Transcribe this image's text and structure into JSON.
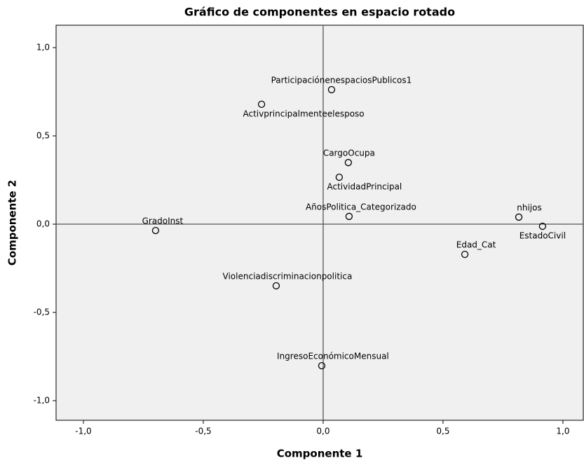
{
  "chart_data": {
    "type": "scatter",
    "title": "Gráfico de componentes en espacio rotado",
    "x_label": "Componente 1",
    "y_label": "Componente 2",
    "xlim": [
      -1.114,
      1.085
    ],
    "ylim": [
      -1.111,
      1.127
    ],
    "xticks": [
      {
        "value": -1.0,
        "label": "-1,0"
      },
      {
        "value": -0.5,
        "label": "-0,5"
      },
      {
        "value": 0.0,
        "label": "0,0"
      },
      {
        "value": 0.5,
        "label": "0,5"
      },
      {
        "value": 1.0,
        "label": "1,0"
      }
    ],
    "yticks": [
      {
        "value": -1.0,
        "label": "-1,0"
      },
      {
        "value": -0.5,
        "label": "-0,5"
      },
      {
        "value": 0.0,
        "label": "0,0"
      },
      {
        "value": 0.5,
        "label": "0,5"
      },
      {
        "value": 1.0,
        "label": "1,0"
      }
    ],
    "series": [
      {
        "color": "#000000",
        "point_labels": [
          "ParticipaciónenespaciosPublicos1",
          "Activprincipalmenteelesposo",
          "CargoOcupa",
          "ActividadPrincipal",
          "AñosPolitica_Categorizado",
          "GradoInst",
          "nhijos",
          "EstadoCivil",
          "Edad_Cat",
          "Violenciadiscriminacionpolitica",
          "IngresoEconómicoMensual"
        ],
        "x": [
          0.035,
          -0.257,
          0.105,
          0.067,
          0.108,
          -0.699,
          0.816,
          0.915,
          0.591,
          -0.196,
          -0.006
        ],
        "values": [
          0.762,
          0.679,
          0.349,
          0.266,
          0.044,
          -0.036,
          0.04,
          -0.012,
          -0.171,
          -0.349,
          -0.802
        ]
      }
    ]
  }
}
